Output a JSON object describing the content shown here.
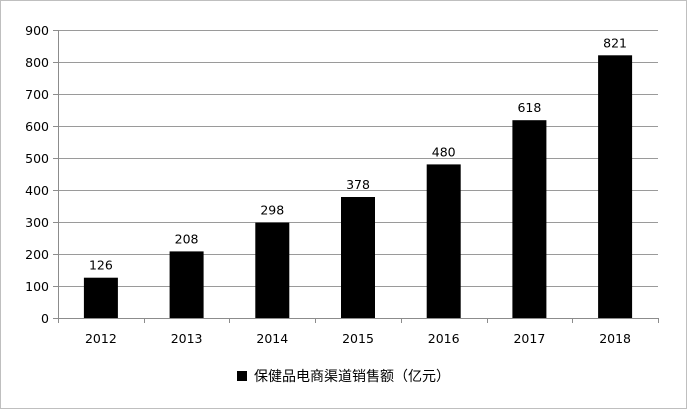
{
  "chart_data": {
    "type": "bar",
    "categories": [
      "2012",
      "2013",
      "2014",
      "2015",
      "2016",
      "2017",
      "2018"
    ],
    "series": [
      {
        "name": "保健品电商渠道销售额（亿元）",
        "values": [
          126,
          208,
          298,
          378,
          480,
          618,
          821
        ],
        "color": "#000000"
      }
    ],
    "data_labels": [
      "126",
      "208",
      "298",
      "378",
      "480",
      "618",
      "821"
    ],
    "ylim": [
      0,
      900
    ],
    "yticks": [
      0,
      100,
      200,
      300,
      400,
      500,
      600,
      700,
      800,
      900
    ],
    "grid": true,
    "legend_position": "bottom",
    "title": "",
    "xlabel": "",
    "ylabel": ""
  }
}
